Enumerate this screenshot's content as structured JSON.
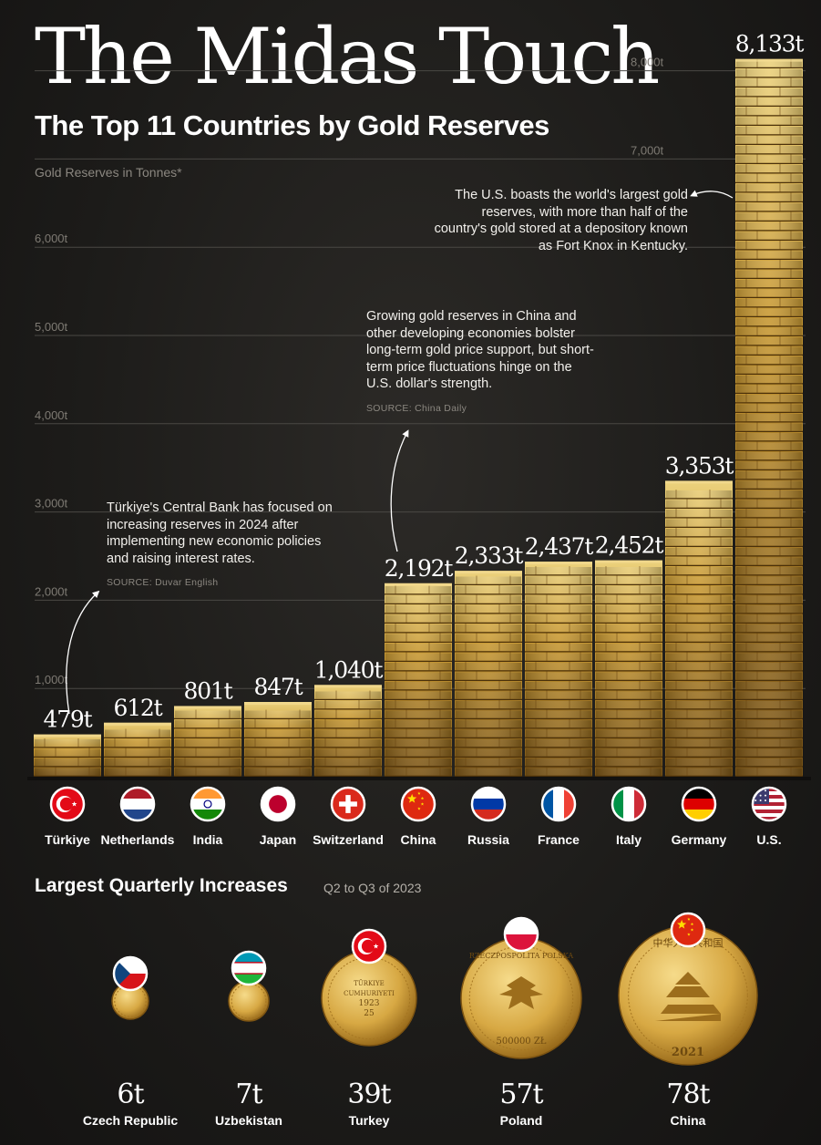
{
  "title": "The Midas Touch",
  "subtitle": "The Top 11 Countries by Gold Reserves",
  "unit_label": "Gold Reserves in Tonnes*",
  "chart_data": {
    "type": "bar",
    "title": "The Top 11 Countries by Gold Reserves",
    "ylabel": "Gold Reserves in Tonnes*",
    "ylim": [
      0,
      8133
    ],
    "yticks": [
      1000,
      2000,
      3000,
      4000,
      5000,
      6000,
      7000,
      8000
    ],
    "ytick_labels": [
      "1,000t",
      "2,000t",
      "3,000t",
      "4,000t",
      "5,000t",
      "6,000t",
      "7,000t",
      "8,000t"
    ],
    "grid": true,
    "categories": [
      "Türkiye",
      "Netherlands",
      "India",
      "Japan",
      "Switzerland",
      "China",
      "Russia",
      "France",
      "Italy",
      "Germany",
      "U.S."
    ],
    "values": [
      479,
      612,
      801,
      847,
      1040,
      2192,
      2333,
      2437,
      2452,
      3353,
      8133
    ],
    "value_labels": [
      "479t",
      "612t",
      "801t",
      "847t",
      "1,040t",
      "2,192t",
      "2,333t",
      "2,437t",
      "2,452t",
      "3,353t",
      "8,133t"
    ],
    "flags": [
      "turkey-flag-icon",
      "netherlands-flag-icon",
      "india-flag-icon",
      "japan-flag-icon",
      "switzerland-flag-icon",
      "china-flag-icon",
      "russia-flag-icon",
      "france-flag-icon",
      "italy-flag-icon",
      "germany-flag-icon",
      "us-flag-icon"
    ]
  },
  "annotations": {
    "us": "The U.S. boasts the world's largest gold reserves, with more than half of the country's gold stored at a depository known as Fort Knox in Kentucky.",
    "china": "Growing gold reserves in China and other developing economies bolster long-term gold price support, but short-term price fluctuations hinge on the U.S. dollar's strength.",
    "china_source": "SOURCE: China Daily",
    "turkiye": "Türkiye's Central Bank has focused on increasing reserves in 2024 after implementing new economic policies and raising interest rates.",
    "turkiye_source": "SOURCE: Duvar English"
  },
  "increases": {
    "title": "Largest Quarterly Increases",
    "subtitle": "Q2 to Q3 of 2023",
    "items": [
      {
        "country": "Czech Republic",
        "value": "6t",
        "flag": "czech-flag-icon",
        "coin": "gold-coin-icon"
      },
      {
        "country": "Uzbekistan",
        "value": "7t",
        "flag": "uzbekistan-flag-icon",
        "coin": "gold-coin-icon"
      },
      {
        "country": "Turkey",
        "value": "39t",
        "flag": "turkey-flag-icon",
        "coin": "turkiye-coin-icon",
        "coin_text": [
          "TÜRKIYE",
          "CUMHURIYETI",
          "1923",
          "25"
        ]
      },
      {
        "country": "Poland",
        "value": "57t",
        "flag": "poland-flag-icon",
        "coin": "polish-eagle-coin-icon",
        "coin_text": [
          "RZECZPOSPOLITA POLSKA",
          "500000 ZŁ"
        ]
      },
      {
        "country": "China",
        "value": "78t",
        "flag": "china-flag-icon",
        "coin": "temple-of-heaven-coin-icon",
        "coin_text": [
          "中华人民共和国",
          "2021"
        ]
      }
    ]
  },
  "colors": {
    "gold_light": "#e6c468",
    "gold_mid": "#c9972f",
    "gold_dark": "#5e3f0e",
    "background": "#1f1e1c",
    "gridline": "#4a4844"
  }
}
